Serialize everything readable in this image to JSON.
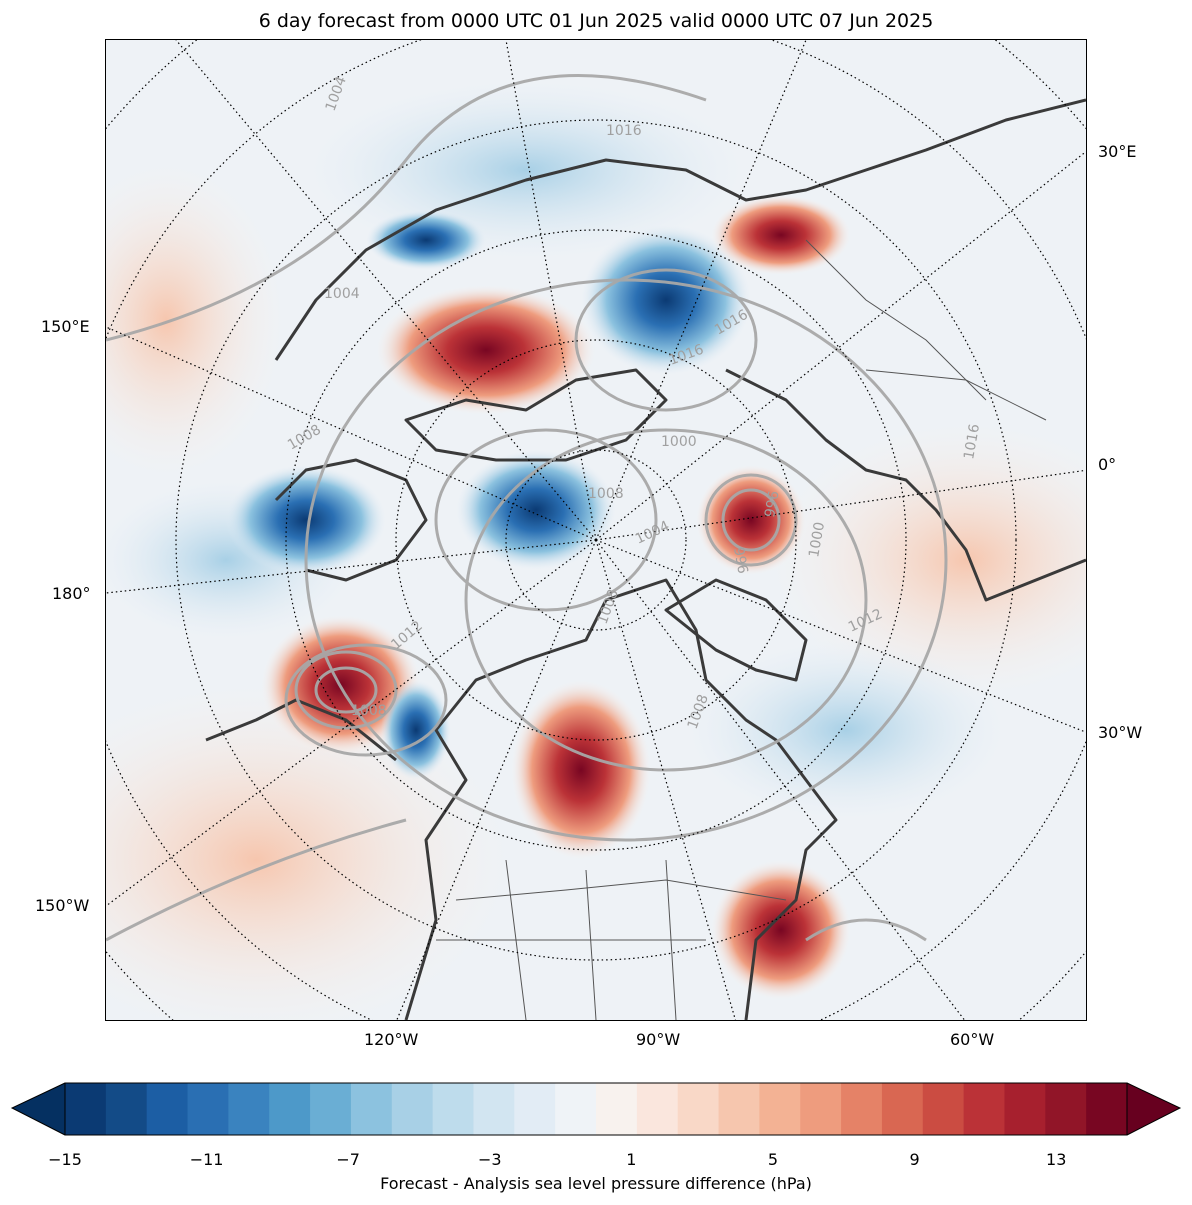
{
  "title": "6 day forecast from 0000 UTC 01 Jun 2025 valid 0000 UTC 07 Jun 2025",
  "longitude_labels": {
    "e30": "30°E",
    "e150": "150°E",
    "zero": "0°",
    "d180": "180°",
    "w30": "30°W",
    "w150": "150°W",
    "w120": "120°W",
    "w90": "90°W",
    "w60": "60°W"
  },
  "isobar_labels": [
    "1004",
    "1004",
    "1008",
    "1016",
    "1016",
    "1016",
    "1000",
    "1008",
    "1004",
    "1008",
    "996",
    "996",
    "1000",
    "1012",
    "1012",
    "1008",
    "1008",
    "1016"
  ],
  "colorbar": {
    "label": "Forecast - Analysis sea level pressure difference (hPa)",
    "ticks": [
      "−15",
      "−11",
      "−7",
      "−3",
      "1",
      "5",
      "9",
      "13"
    ],
    "min": -15,
    "max": 15,
    "step": 1,
    "colors": [
      "#0b3a73",
      "#134b87",
      "#1c5ea4",
      "#2a6fb3",
      "#3a83bf",
      "#4d99c9",
      "#6aaed4",
      "#8cc2df",
      "#a8d0e6",
      "#bedcec",
      "#d2e5f1",
      "#e2ecf5",
      "#eff3f7",
      "#f8f2ee",
      "#fae6dd",
      "#f9d8c7",
      "#f6c6ae",
      "#f3b294",
      "#ee9c7e",
      "#e58267",
      "#d96752",
      "#cb4c42",
      "#bb3237",
      "#a7202e",
      "#911528",
      "#780622"
    ],
    "extend_low_color": "#053061",
    "extend_high_color": "#67001f"
  }
}
